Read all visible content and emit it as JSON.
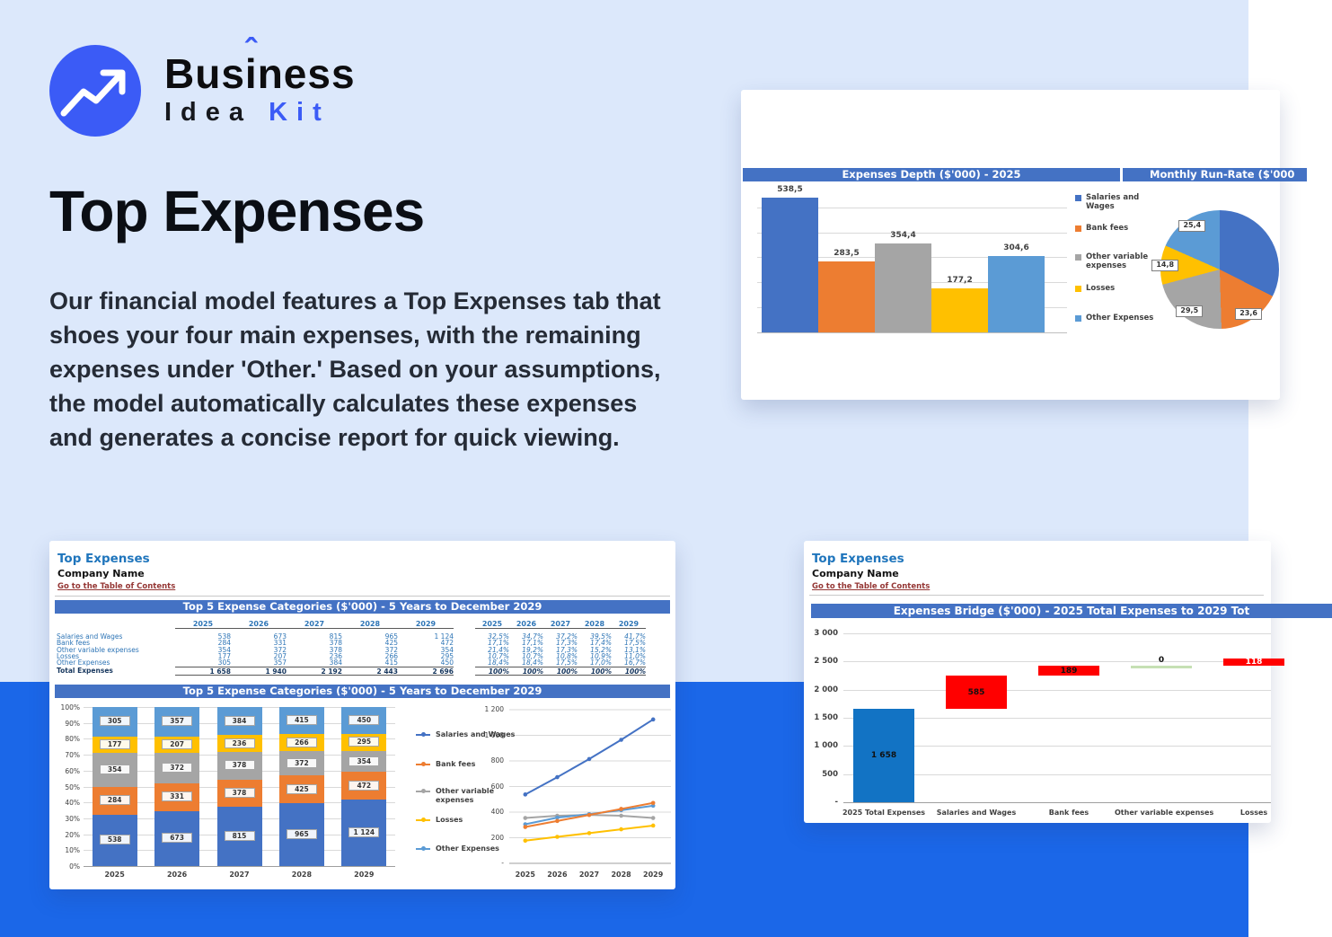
{
  "brand": {
    "word1_a": "Bus",
    "word1_b": "i",
    "word1_c": "ness",
    "caret": "ˆ",
    "word2": "Idea",
    "word3": "Kit"
  },
  "hero": {
    "title": "Top Expenses",
    "paragraph": "Our financial model features a Top Expenses tab that shoes your four main expenses, with the remaining expenses under 'Other.' Based on your assumptions, the model automatically calculates these expenses and generates a concise report for quick viewing."
  },
  "colors": {
    "page_bg": "#DCE8FB",
    "bottom_band": "#1B67E8",
    "brand_blue": "#3B5BF6",
    "header_bar": "#4472C4",
    "sheet_title_blue": "#1F75BC",
    "toc_link_maroon": "#953735",
    "table_text_blue": "#2E75B6",
    "series": [
      "#4472C4",
      "#ED7D31",
      "#A5A5A5",
      "#FFC000",
      "#5B9BD5"
    ],
    "waterfall_red": "#FF0000",
    "waterfall_blue": "#1273C4",
    "waterfall_green": "#C6E0B4"
  },
  "sheet_common": {
    "sheet_title": "Top Expenses",
    "company": "Company Name",
    "toc_link": "Go to the Table of Contents"
  },
  "table": {
    "title": "Top 5 Expense Categories ($'000) - 5 Years to December 2029",
    "years": [
      "2025",
      "2026",
      "2027",
      "2028",
      "2029"
    ],
    "rows": [
      {
        "label": "Salaries and Wages",
        "values": [
          "538",
          "673",
          "815",
          "965",
          "1 124"
        ],
        "pcts": [
          "32,5%",
          "34,7%",
          "37,2%",
          "39,5%",
          "41,7%"
        ]
      },
      {
        "label": "Bank fees",
        "values": [
          "284",
          "331",
          "378",
          "425",
          "472"
        ],
        "pcts": [
          "17,1%",
          "17,1%",
          "17,3%",
          "17,4%",
          "17,5%"
        ]
      },
      {
        "label": "Other variable expenses",
        "values": [
          "354",
          "372",
          "378",
          "372",
          "354"
        ],
        "pcts": [
          "21,4%",
          "19,2%",
          "17,3%",
          "15,2%",
          "13,1%"
        ]
      },
      {
        "label": "Losses",
        "values": [
          "177",
          "207",
          "236",
          "266",
          "295"
        ],
        "pcts": [
          "10,7%",
          "10,7%",
          "10,8%",
          "10,9%",
          "11,0%"
        ]
      },
      {
        "label": "Other Expenses",
        "values": [
          "305",
          "357",
          "384",
          "415",
          "450"
        ],
        "pcts": [
          "18,4%",
          "18,4%",
          "17,5%",
          "17,0%",
          "16,7%"
        ]
      }
    ],
    "total": {
      "label": "Total Expenses",
      "values": [
        "1 658",
        "1 940",
        "2 192",
        "2 443",
        "2 696"
      ],
      "pcts": [
        "100%",
        "100%",
        "100%",
        "100%",
        "100%"
      ]
    }
  },
  "chart_data": [
    {
      "type": "bar",
      "title": "Expenses Depth ($'000) - 2025",
      "categories": [
        "Salaries and Wages",
        "Bank fees",
        "Other variable expenses",
        "Losses",
        "Other Expenses"
      ],
      "values": [
        538.5,
        283.5,
        354.4,
        177.2,
        304.6
      ],
      "value_labels": [
        "538,5",
        "283,5",
        "354,4",
        "177,2",
        "304,6"
      ],
      "colors": [
        "#4472C4",
        "#ED7D31",
        "#A5A5A5",
        "#FFC000",
        "#5B9BD5"
      ],
      "ylim": [
        0,
        600
      ],
      "grid_step": 100,
      "grid": true,
      "legend_position": "right"
    },
    {
      "type": "pie",
      "title": "Monthly Run-Rate ($'000",
      "labels": [
        "Salaries and Wages",
        "Bank fees",
        "Other variable expenses",
        "Losses",
        "Other Expenses"
      ],
      "values": [
        44.8,
        23.6,
        29.5,
        14.8,
        25.4
      ],
      "value_labels": [
        "",
        "23,6",
        "29,5",
        "14,8",
        "25,4"
      ],
      "colors": [
        "#4472C4",
        "#ED7D31",
        "#A5A5A5",
        "#FFC000",
        "#5B9BD5"
      ]
    },
    {
      "type": "bar",
      "variant": "stacked-100",
      "title": "Top 5 Expense Categories ($'000) - 5 Years to December 2029",
      "categories": [
        "2025",
        "2026",
        "2027",
        "2028",
        "2029"
      ],
      "series": [
        {
          "name": "Salaries and Wages",
          "color": "#4472C4",
          "values": [
            538,
            673,
            815,
            965,
            1124
          ],
          "labels": [
            "538",
            "673",
            "815",
            "965",
            "1 124"
          ]
        },
        {
          "name": "Bank fees",
          "color": "#ED7D31",
          "values": [
            284,
            331,
            378,
            425,
            472
          ],
          "labels": [
            "284",
            "331",
            "378",
            "425",
            "472"
          ]
        },
        {
          "name": "Other variable expenses",
          "color": "#A5A5A5",
          "values": [
            354,
            372,
            378,
            372,
            354
          ],
          "labels": [
            "354",
            "372",
            "378",
            "372",
            "354"
          ]
        },
        {
          "name": "Losses",
          "color": "#FFC000",
          "values": [
            177,
            207,
            236,
            266,
            295
          ],
          "labels": [
            "177",
            "207",
            "236",
            "266",
            "295"
          ]
        },
        {
          "name": "Other Expenses",
          "color": "#5B9BD5",
          "values": [
            305,
            357,
            384,
            415,
            450
          ],
          "labels": [
            "305",
            "357",
            "384",
            "415",
            "450"
          ]
        }
      ],
      "y_ticks": [
        "0%",
        "10%",
        "20%",
        "30%",
        "40%",
        "50%",
        "60%",
        "70%",
        "80%",
        "90%",
        "100%"
      ],
      "legend_position": "right",
      "grid": true
    },
    {
      "type": "line",
      "x": [
        "2025",
        "2026",
        "2027",
        "2028",
        "2029"
      ],
      "series": [
        {
          "name": "Salaries and Wages",
          "color": "#4472C4",
          "values": [
            538,
            673,
            815,
            965,
            1124
          ]
        },
        {
          "name": "Bank fees",
          "color": "#ED7D31",
          "values": [
            284,
            331,
            378,
            425,
            472
          ]
        },
        {
          "name": "Other variable expenses",
          "color": "#A5A5A5",
          "values": [
            354,
            372,
            378,
            372,
            354
          ]
        },
        {
          "name": "Losses",
          "color": "#FFC000",
          "values": [
            177,
            207,
            236,
            266,
            295
          ]
        },
        {
          "name": "Other Expenses",
          "color": "#5B9BD5",
          "values": [
            305,
            357,
            384,
            415,
            450
          ]
        }
      ],
      "y_ticks": [
        "-",
        "200",
        "400",
        "600",
        "800",
        "1 000",
        "1 200"
      ],
      "ylim": [
        0,
        1200
      ],
      "grid": true
    },
    {
      "type": "bar",
      "variant": "waterfall",
      "title": "Expenses Bridge ($'000) - 2025 Total Expenses to 2029 Tot",
      "categories": [
        "2025 Total Expenses",
        "Salaries and Wages",
        "Bank fees",
        "Other variable expenses",
        "Losses"
      ],
      "bars": [
        {
          "start": 0,
          "end": 1658,
          "label": "1 658",
          "color": "#1273C4"
        },
        {
          "start": 1658,
          "end": 2243,
          "label": "585",
          "color": "#FF0000"
        },
        {
          "start": 2243,
          "end": 2432,
          "label": "189",
          "color": "#FF0000"
        },
        {
          "start": 2432,
          "end": 2432,
          "label": "0",
          "color": "#C6E0B4"
        },
        {
          "start": 2432,
          "end": 2550,
          "label": "118",
          "color": "#FF0000"
        }
      ],
      "y_ticks": [
        "-",
        "500",
        "1 000",
        "1 500",
        "2 000",
        "2 500",
        "3 000"
      ],
      "ylim": [
        0,
        3000
      ],
      "grid": true
    }
  ]
}
